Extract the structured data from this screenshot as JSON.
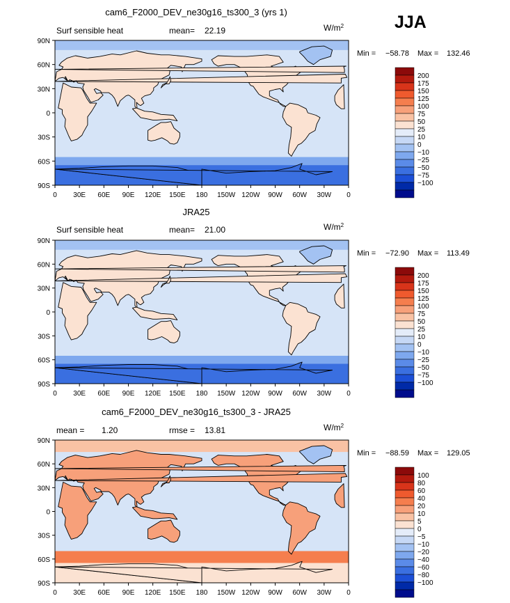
{
  "season": "JJA",
  "colors": {
    "ocean": "#d6e4f7",
    "land": "#fbe2d2",
    "polar": "#3a6fe0",
    "coast": "#000000"
  },
  "chart_data": [
    {
      "type": "heatmap",
      "title": "cam6_F2000_DEV_ne30g16_ts300_3 (yrs 1)",
      "left_label": "Surf sensible heat",
      "stat_label": "mean=",
      "stat_value": "22.19",
      "stat2_label": "",
      "stat2_value": "",
      "units_base": "W/m",
      "units_exp": "2",
      "min_label": "Min =",
      "min_value": "−58.78",
      "max_label": "Max =",
      "max_value": "132.46",
      "yticks": [
        "90N",
        "60N",
        "30N",
        "0",
        "30S",
        "60S",
        "90S"
      ],
      "xticks": [
        "0",
        "30E",
        "60E",
        "90E",
        "120E",
        "150E",
        "180",
        "150W",
        "120W",
        "90W",
        "60W",
        "30W",
        "0"
      ],
      "levels": [
        "200",
        "175",
        "150",
        "125",
        "100",
        "75",
        "50",
        "25",
        "10",
        "0",
        "−10",
        "−25",
        "−50",
        "−75",
        "−100"
      ],
      "colors": [
        "#8c0a0a",
        "#b31a0e",
        "#d8341a",
        "#ef5a2e",
        "#f57e4e",
        "#f7a07a",
        "#f9c2a4",
        "#fbe2d2",
        "#e4ecf9",
        "#c6d8f5",
        "#a3c2f2",
        "#7ea8ee",
        "#5b8be8",
        "#3a6fe0",
        "#1c4fd6",
        "#002aa8",
        "#000c8c"
      ]
    },
    {
      "type": "heatmap",
      "title": "JRA25",
      "left_label": "Surf sensible heat",
      "stat_label": "mean=",
      "stat_value": "21.00",
      "stat2_label": "",
      "stat2_value": "",
      "units_base": "W/m",
      "units_exp": "2",
      "min_label": "Min =",
      "min_value": "−72.90",
      "max_label": "Max =",
      "max_value": "113.49",
      "yticks": [
        "90N",
        "60N",
        "30N",
        "0",
        "30S",
        "60S",
        "90S"
      ],
      "xticks": [
        "0",
        "30E",
        "60E",
        "90E",
        "120E",
        "150E",
        "180",
        "150W",
        "120W",
        "90W",
        "60W",
        "30W",
        "0"
      ],
      "levels": [
        "200",
        "175",
        "150",
        "125",
        "100",
        "75",
        "50",
        "25",
        "10",
        "0",
        "−10",
        "−25",
        "−50",
        "−75",
        "−100"
      ],
      "colors": [
        "#8c0a0a",
        "#b31a0e",
        "#d8341a",
        "#ef5a2e",
        "#f57e4e",
        "#f7a07a",
        "#f9c2a4",
        "#fbe2d2",
        "#e4ecf9",
        "#c6d8f5",
        "#a3c2f2",
        "#7ea8ee",
        "#5b8be8",
        "#3a6fe0",
        "#1c4fd6",
        "#002aa8",
        "#000c8c"
      ]
    },
    {
      "type": "heatmap",
      "title": "cam6_F2000_DEV_ne30g16_ts300_3 - JRA25",
      "left_label": "",
      "stat_label": "mean =",
      "stat_value": "1.20",
      "stat2_label": "rmse =",
      "stat2_value": "13.81",
      "units_base": "W/m",
      "units_exp": "2",
      "min_label": "Min =",
      "min_value": "−88.59",
      "max_label": "Max =",
      "max_value": "129.05",
      "yticks": [
        "90N",
        "60N",
        "30N",
        "0",
        "30S",
        "60S",
        "90S"
      ],
      "xticks": [
        "0",
        "30E",
        "60E",
        "90E",
        "120E",
        "150E",
        "180",
        "150W",
        "120W",
        "90W",
        "60W",
        "30W",
        "0"
      ],
      "levels": [
        "100",
        "80",
        "60",
        "40",
        "20",
        "10",
        "5",
        "0",
        "−5",
        "−10",
        "−20",
        "−40",
        "−60",
        "−80",
        "−100"
      ],
      "colors": [
        "#8c0a0a",
        "#b31a0e",
        "#d8341a",
        "#ef5a2e",
        "#f57e4e",
        "#f7a07a",
        "#f9c2a4",
        "#fbe2d2",
        "#e4ecf9",
        "#c6d8f5",
        "#a3c2f2",
        "#7ea8ee",
        "#5b8be8",
        "#3a6fe0",
        "#1c4fd6",
        "#002aa8",
        "#000c8c"
      ]
    }
  ]
}
